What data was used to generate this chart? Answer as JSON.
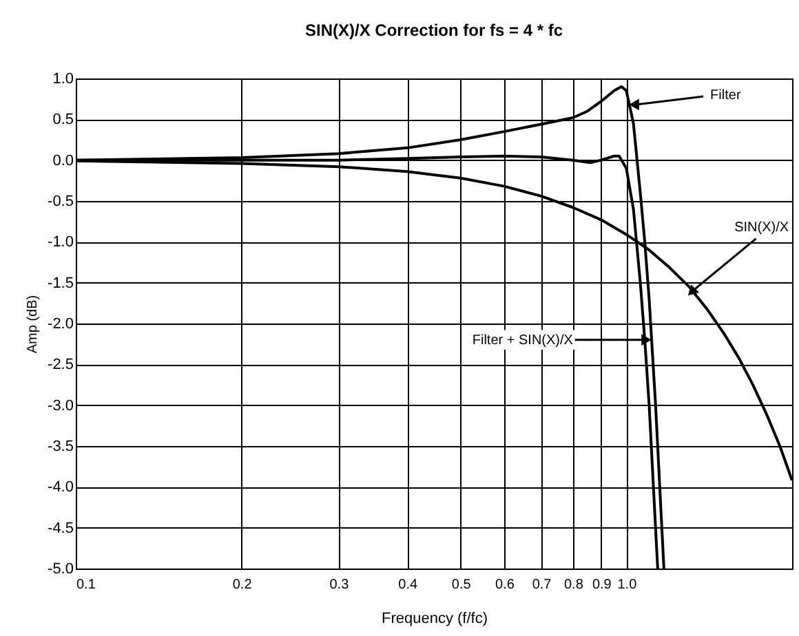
{
  "chart_data": {
    "type": "line",
    "title": "SIN(X)/X   Correction for fs = 4 * fc",
    "xlabel": "Frequency (f/fc)",
    "ylabel": "Amp (dB)",
    "log": "x",
    "grid": true,
    "marker": "none",
    "line_style": "solid",
    "xlim": [
      0.1,
      2.0
    ],
    "xticks": [
      0.1,
      0.2,
      0.3,
      0.4,
      0.5,
      0.6,
      0.7,
      0.8,
      0.9,
      {
        "value": 1,
        "label": "1.0"
      }
    ],
    "ylim": [
      -5,
      1
    ],
    "yticks": [
      {
        "value": -5,
        "label": "-5.0"
      },
      -4.5,
      {
        "value": -4,
        "label": "-4.0"
      },
      -3.5,
      {
        "value": -3,
        "label": "-3.0"
      },
      -2.5,
      {
        "value": -2,
        "label": "-2.0"
      },
      -1.5,
      {
        "value": -1,
        "label": "-1.0"
      },
      -0.5,
      {
        "value": 0,
        "label": "0.0"
      },
      0.5,
      {
        "value": 1,
        "label": "1.0"
      }
    ],
    "annotations": [
      {
        "text": "Filter",
        "x": 1.04,
        "y": 0.68
      },
      {
        "text": "SIN(X)/X",
        "x": 1.32,
        "y": -1.6
      },
      {
        "text": "Filter + SIN(X)/X",
        "x": 1.08,
        "y": -2.2
      }
    ],
    "series": [
      {
        "color": "#000000",
        "x": [
          0.1,
          0.2,
          0.3,
          0.4,
          0.5,
          0.6,
          0.7,
          0.8,
          0.85,
          0.9,
          0.95,
          0.98,
          1.0,
          1.03,
          1.06,
          1.08,
          1.1,
          1.13,
          1.17
        ],
        "values": [
          0.0,
          0.03,
          0.08,
          0.15,
          0.25,
          0.35,
          0.44,
          0.52,
          0.6,
          0.72,
          0.85,
          0.9,
          0.85,
          0.45,
          -0.4,
          -1.0,
          -1.7,
          -3.0,
          -5.0
        ]
      },
      {
        "color": "#000000",
        "x": [
          0.1,
          0.2,
          0.3,
          0.4,
          0.5,
          0.6,
          0.7,
          0.8,
          0.9,
          1.0,
          1.1,
          1.2,
          1.3,
          1.4,
          1.5,
          1.6,
          1.7,
          1.8,
          1.9,
          2.0
        ],
        "values": [
          -0.01,
          -0.04,
          -0.08,
          -0.14,
          -0.22,
          -0.32,
          -0.44,
          -0.58,
          -0.73,
          -0.91,
          -1.1,
          -1.32,
          -1.55,
          -1.82,
          -2.11,
          -2.42,
          -2.76,
          -3.12,
          -3.5,
          -3.92
        ]
      },
      {
        "color": "#000000",
        "x": [
          0.1,
          0.2,
          0.3,
          0.4,
          0.5,
          0.6,
          0.7,
          0.8,
          0.86,
          0.9,
          0.95,
          0.97,
          1.0,
          1.03,
          1.06,
          1.08,
          1.1,
          1.14
        ],
        "values": [
          0.0,
          0.0,
          0.0,
          0.02,
          0.04,
          0.05,
          0.04,
          0.0,
          -0.03,
          0.0,
          0.05,
          0.05,
          -0.1,
          -0.6,
          -1.5,
          -2.2,
          -3.0,
          -5.0
        ]
      }
    ]
  }
}
